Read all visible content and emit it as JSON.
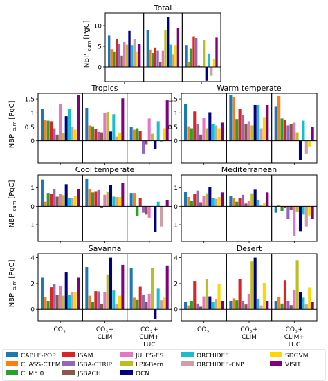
{
  "figure": {
    "ylabel": "NBP",
    "ylabel_sub": "cum",
    "ylabel_unit": "[PgC]",
    "group_labels": [
      {
        "main": "CO",
        "sub": "2",
        "lines": []
      },
      {
        "main": "CO",
        "sub": "2",
        "plus": "+",
        "lines": [
          "CLIM"
        ]
      },
      {
        "main": "CO",
        "sub": "2",
        "plus": "+",
        "lines": [
          "CLIM+",
          "LUC"
        ]
      }
    ]
  },
  "models": [
    "CABLE-POP",
    "CLASS-CTEM",
    "CLM5.0",
    "ISAM",
    "ISBA-CTRIP",
    "JSBACH",
    "JULES-ES",
    "LPX-Bern",
    "OCN",
    "ORCHIDEE",
    "ORCHIDEE-CNP",
    "SDGVM",
    "VISIT"
  ],
  "colors": [
    "#1f77b4",
    "#ff7f0e",
    "#2ca02c",
    "#d62728",
    "#9467bd",
    "#8c564b",
    "#e377c2",
    "#bcbd22",
    "#000080",
    "#17becf",
    "#cf9fa9",
    "#ffd700",
    "#800080"
  ],
  "legend": {
    "columns": [
      [
        "CABLE-POP",
        "CLASS-CTEM",
        "CLM5.0"
      ],
      [
        "ISAM",
        "ISBA-CTRIP",
        "JSBACH"
      ],
      [
        "JULES-ES",
        "LPX-Bern",
        "OCN"
      ],
      [
        "ORCHIDEE",
        "ORCHIDEE-CNP"
      ],
      [
        "SDGVM",
        "VISIT"
      ]
    ]
  },
  "chart_data": [
    {
      "type": "bar",
      "title": "Total",
      "ylim": [
        -3.5,
        13
      ],
      "yticks": [
        0,
        5,
        10
      ],
      "groups": [
        "CO2",
        "CO2+CLIM",
        "CO2+CLIM+LUC"
      ],
      "values": [
        [
          7.6,
          4.3,
          3.7,
          6.7,
          5.5,
          2.7,
          6.0,
          5.4,
          8.7,
          5.3,
          6.7,
          3.7,
          5.5
        ],
        [
          8.9,
          4.2,
          3.5,
          4.7,
          3.9,
          1.2,
          3.9,
          8.9,
          12.1,
          5.4,
          3.1,
          5.3,
          9.5
        ],
        [
          5.3,
          1.2,
          4.4,
          7.4,
          7.0,
          0.4,
          0.2,
          6.5,
          -3.3,
          3.2,
          -2.1,
          2.0,
          7.1
        ]
      ]
    },
    {
      "type": "bar",
      "title": "Tropics",
      "ylim": [
        -0.8,
        1.7
      ],
      "yticks": [
        0.0,
        0.5,
        1.0,
        1.5
      ],
      "groups": [
        "CO2",
        "CO2+CLIM",
        "CO2+CLIM+LUC"
      ],
      "values": [
        [
          1.15,
          0.75,
          0.72,
          0.7,
          0.45,
          0.22,
          1.32,
          0.27,
          0.88,
          1.15,
          0.5,
          0.4,
          1.65
        ],
        [
          1.18,
          0.55,
          0.52,
          0.42,
          0.32,
          0.3,
          1.0,
          1.03,
          0.33,
          0.95,
          0.15,
          0.27,
          1.52
        ],
        [
          0.5,
          0.4,
          0.45,
          0.35,
          -0.45,
          -0.12,
          0.8,
          0.25,
          -0.3,
          0.7,
          -0.05,
          0.45,
          1.45
        ]
      ]
    },
    {
      "type": "bar",
      "title": "Warm temperate",
      "ylim": [
        -0.8,
        1.7
      ],
      "yticks": [
        0.0,
        0.5,
        1.0,
        1.5
      ],
      "groups": [
        "CO2",
        "CO2+CLIM",
        "CO2+CLIM+LUC"
      ],
      "values": [
        [
          1.32,
          0.52,
          0.45,
          1.05,
          0.6,
          0.22,
          0.82,
          0.45,
          1.02,
          0.6,
          0.55,
          0.45,
          0.65
        ],
        [
          1.65,
          1.55,
          0.78,
          1.15,
          0.92,
          0.6,
          0.7,
          0.55,
          1.28,
          1.28,
          0.45,
          0.85,
          1.28
        ],
        [
          1.22,
          1.6,
          0.8,
          0.75,
          0.55,
          0.6,
          0.65,
          0.3,
          -0.7,
          0.72,
          -0.45,
          -0.2,
          0.5
        ]
      ]
    },
    {
      "type": "bar",
      "title": "Cool temperate",
      "ylim": [
        -1.9,
        1.7
      ],
      "yticks": [
        -1,
        0,
        1
      ],
      "groups": [
        "CO2",
        "CO2+CLIM",
        "CO2+CLIM+LUC"
      ],
      "values": [
        [
          1.45,
          0.25,
          0.72,
          0.65,
          0.95,
          0.52,
          0.68,
          0.6,
          1.2,
          0.45,
          0.45,
          0.55,
          0.95
        ],
        [
          1.48,
          0.95,
          0.75,
          0.82,
          0.88,
          -0.1,
          0.62,
          0.78,
          1.15,
          0.52,
          0.5,
          0.5,
          1.25
        ],
        [
          0.72,
          0.72,
          -0.52,
          0.45,
          -0.35,
          -0.45,
          -0.62,
          0.0,
          -1.4,
          0.25,
          -1.1,
          0.0,
          0.35
        ]
      ]
    },
    {
      "type": "bar",
      "title": "Mediterranean",
      "ylim": [
        -1.9,
        1.7
      ],
      "yticks": [
        -1,
        0,
        1
      ],
      "groups": [
        "CO2",
        "CO2+CLIM",
        "CO2+CLIM+LUC"
      ],
      "values": [
        [
          0.8,
          0.5,
          0.3,
          0.65,
          0.85,
          0.22,
          0.55,
          0.7,
          1.05,
          0.45,
          0.4,
          0.5,
          0.75
        ],
        [
          0.55,
          0.45,
          0.25,
          0.45,
          0.62,
          0.15,
          0.28,
          0.7,
          0.9,
          0.35,
          0.08,
          0.2,
          0.75
        ],
        [
          -0.35,
          0.05,
          -0.25,
          -0.1,
          -0.7,
          -0.2,
          -1.6,
          -0.3,
          -1.35,
          -0.45,
          -1.1,
          -0.5,
          -0.7
        ]
      ]
    },
    {
      "type": "bar",
      "title": "Savanna",
      "ylim": [
        -0.9,
        4.3
      ],
      "yticks": [
        0,
        2,
        4
      ],
      "groups": [
        "CO2",
        "CO2+CLIM",
        "CO2+CLIM+LUC"
      ],
      "values": [
        [
          2.45,
          0.95,
          0.62,
          1.72,
          1.95,
          1.1,
          1.8,
          1.05,
          2.85,
          1.1,
          1.35,
          1.3,
          2.45
        ],
        [
          3.28,
          1.05,
          0.55,
          1.4,
          1.38,
          0.42,
          1.35,
          2.7,
          4.0,
          1.45,
          0.4,
          1.05,
          3.45
        ],
        [
          3.18,
          0.9,
          0.72,
          1.75,
          1.12,
          0.55,
          1.2,
          3.2,
          -0.75,
          1.6,
          0.7,
          0.9,
          3.4
        ]
      ]
    },
    {
      "type": "bar",
      "title": "Desert",
      "ylim": [
        -0.9,
        4.3
      ],
      "yticks": [
        0,
        2,
        4
      ],
      "groups": [
        "CO2",
        "CO2+CLIM",
        "CO2+CLIM+LUC"
      ],
      "values": [
        [
          0.55,
          0.3,
          0.65,
          2.15,
          0.45,
          0.2,
          1.0,
          2.35,
          1.0,
          0.55,
          0.75,
          2.0,
          0.62
        ],
        [
          0.62,
          0.85,
          0.7,
          2.35,
          0.65,
          0.38,
          1.2,
          3.7,
          4.0,
          0.82,
          0.3,
          2.05,
          0.62
        ],
        [
          0.65,
          0.95,
          0.45,
          2.25,
          0.62,
          0.32,
          1.5,
          3.8,
          1.3,
          0.9,
          0.4,
          1.7,
          0.55
        ]
      ]
    }
  ]
}
